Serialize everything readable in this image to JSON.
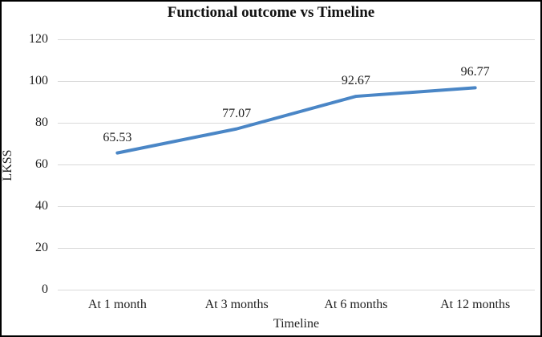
{
  "chart_data": {
    "type": "line",
    "title": "Functional outcome vs Timeline",
    "xlabel": "Timeline",
    "ylabel": "LKSS",
    "categories": [
      "At 1 month",
      "At 3 months",
      "At 6 months",
      "At 12 months"
    ],
    "series": [
      {
        "name": "LKSS",
        "values": [
          65.53,
          77.07,
          92.67,
          96.77
        ]
      }
    ],
    "data_labels": [
      "65.53",
      "77.07",
      "92.67",
      "96.77"
    ],
    "ylim": [
      0,
      120
    ],
    "yticks": [
      0,
      20,
      40,
      60,
      80,
      100,
      120
    ],
    "grid": true,
    "legend": false,
    "colors": {
      "line": "#4a86c6",
      "gridline": "#d9d9d9",
      "text": "#1f1f1f",
      "border": "#000000",
      "background": "#ffffff"
    }
  }
}
